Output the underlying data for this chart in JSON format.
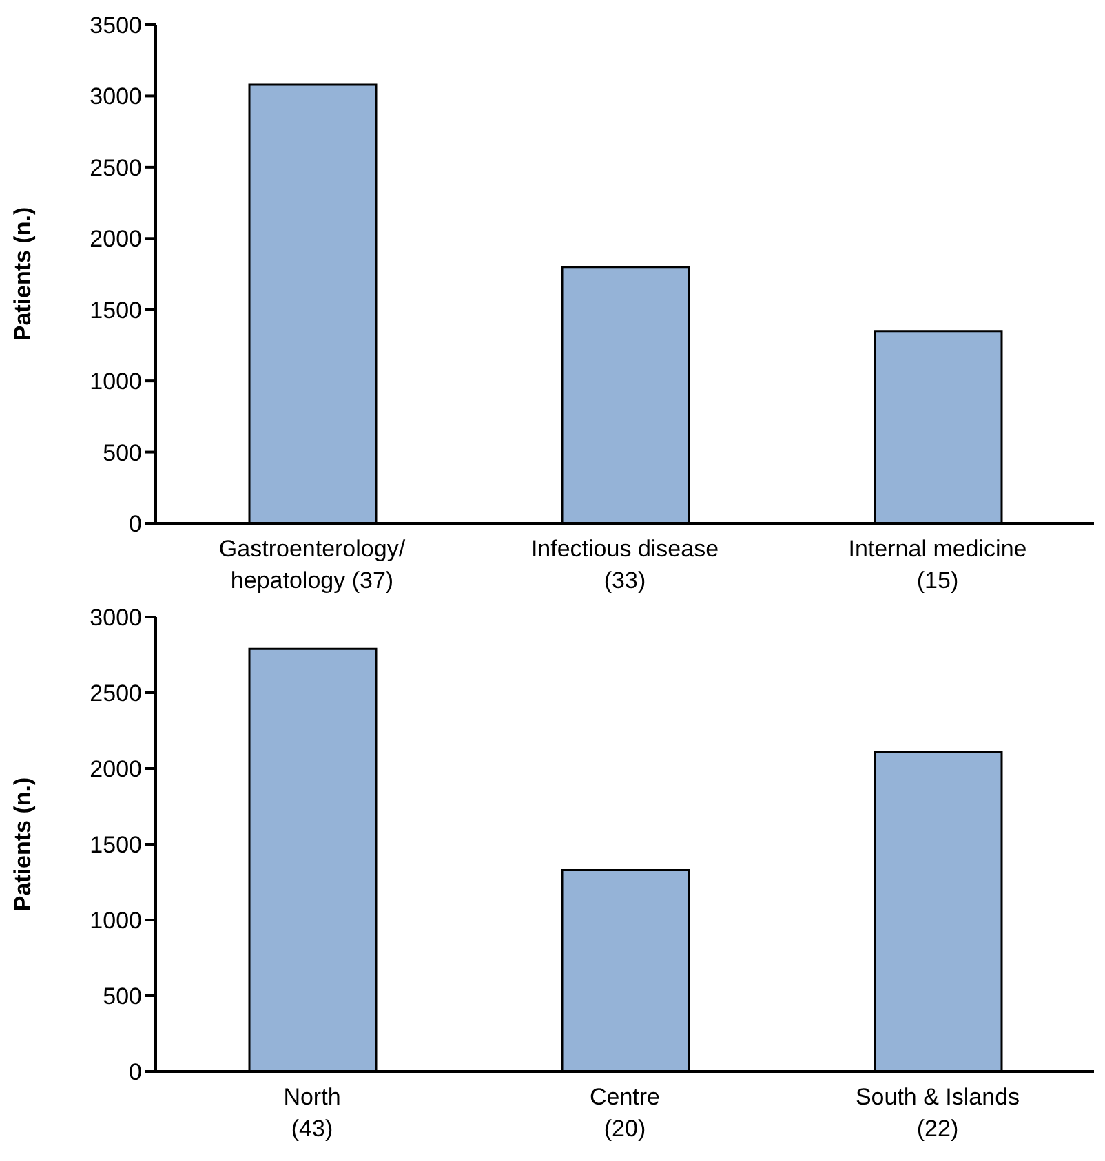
{
  "chart_data": [
    {
      "type": "bar",
      "ylabel": "Patients (n.)",
      "categories": [
        "Gastroenterology/\nhepatology (37)",
        "Infectious disease\n(33)",
        "Internal medicine\n(15)"
      ],
      "values": [
        3080,
        1800,
        1350
      ],
      "color": "#95b3d7",
      "ylim": [
        0,
        3500
      ],
      "yticks": [
        0,
        500,
        1000,
        1500,
        2000,
        2500,
        3000,
        3500
      ],
      "grid": false
    },
    {
      "type": "bar",
      "ylabel": "Patients (n.)",
      "categories": [
        "North\n(43)",
        "Centre\n(20)",
        "South & Islands\n(22)"
      ],
      "values": [
        2790,
        1330,
        2110
      ],
      "color": "#95b3d7",
      "ylim": [
        0,
        3000
      ],
      "yticks": [
        0,
        500,
        1000,
        1500,
        2000,
        2500,
        3000
      ],
      "grid": false
    }
  ]
}
